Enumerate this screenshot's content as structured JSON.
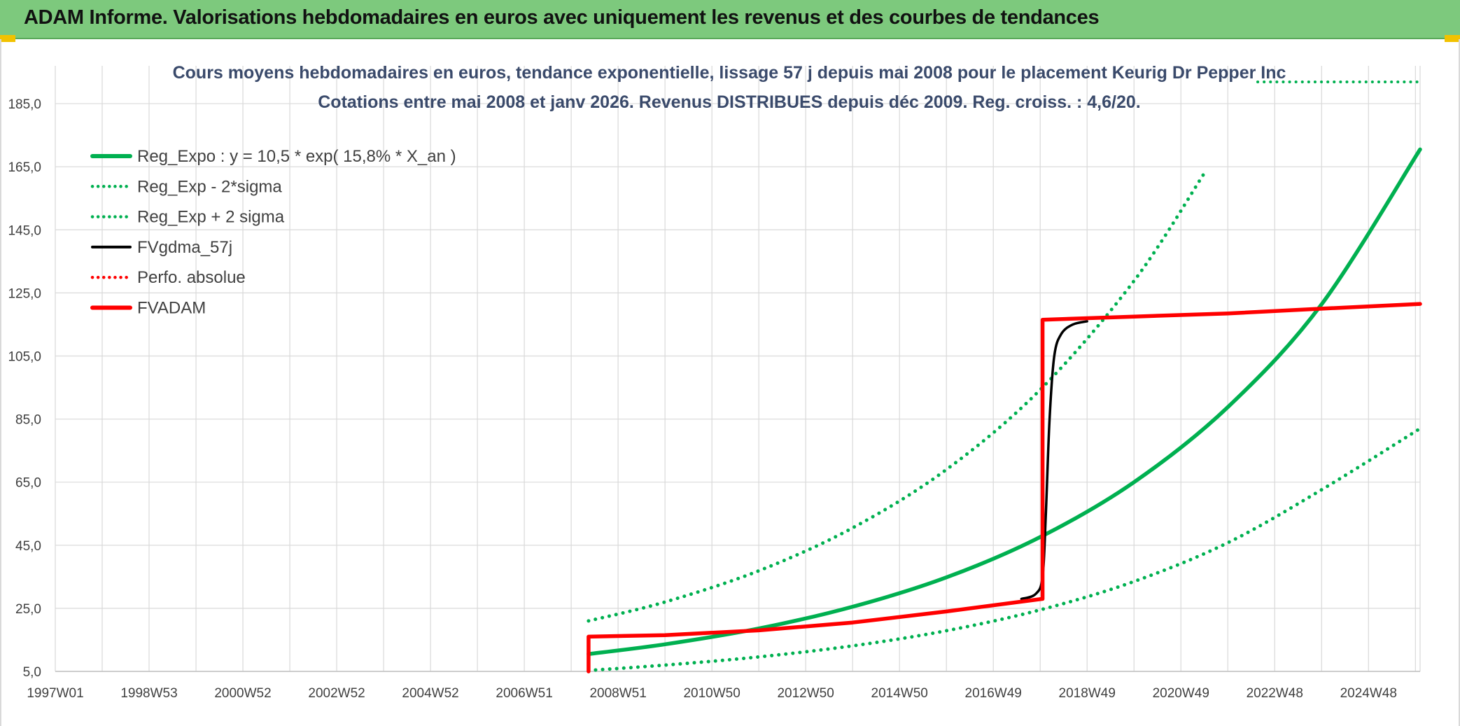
{
  "banner": {
    "title": "ADAM Informe. Valorisations hebdomadaires en euros avec uniquement les revenus et des courbes de tendances"
  },
  "colors": {
    "banner_bg": "#7dc97d",
    "reg_expo": "#00b050",
    "fvgdma": "#000000",
    "fvadam": "#ff0000",
    "perfo": "#ff0000"
  },
  "chart_data": {
    "type": "line",
    "title": [
      "Cours moyens hebdomadaires en euros, tendance exponentielle, lissage 57 j depuis mai 2008 pour le placement Keurig Dr Pepper Inc",
      "Cotations entre mai 2008 et janv 2026. Revenus DISTRIBUES depuis déc 2009. Reg. croiss. : 4,6/20."
    ],
    "x_tick_labels": [
      "1997W01",
      "1998W53",
      "2000W52",
      "2002W52",
      "2004W52",
      "2006W51",
      "2008W51",
      "2010W50",
      "2012W50",
      "2014W50",
      "2016W49",
      "2018W49",
      "2020W49",
      "2022W48",
      "2024W48"
    ],
    "x_range_years": [
      1997.0,
      2026.1
    ],
    "y_tick_labels": [
      "5,0",
      "25,0",
      "45,0",
      "65,0",
      "85,0",
      "105,0",
      "125,0",
      "145,0",
      "165,0",
      "185,0"
    ],
    "ylim": [
      5,
      197
    ],
    "grid": true,
    "legend_position": "top-left",
    "series": [
      {
        "name": "Reg_Expo : y = 10,5 * exp( 15,8% *  X_an )",
        "style": "solid-thick",
        "color": "#00b050",
        "x": [
          2008.37,
          2010,
          2012,
          2014,
          2016,
          2018,
          2020,
          2022,
          2024,
          2026.1
        ],
        "y": [
          10.5,
          13.6,
          18.6,
          25.5,
          34.8,
          47.6,
          65.0,
          88.8,
          121.4,
          170.5
        ]
      },
      {
        "name": "Reg_Exp - 2*sigma",
        "style": "dotted",
        "color": "#00b050",
        "x": [
          2008.37,
          2010,
          2012,
          2014,
          2016,
          2018,
          2020,
          2022,
          2024,
          2026.1
        ],
        "y": [
          5.3,
          7.0,
          9.6,
          13.1,
          17.9,
          24.5,
          33.5,
          45.8,
          62.6,
          82.0
        ]
      },
      {
        "name": "Reg_Exp + 2 sigma",
        "style": "dotted",
        "color": "#00b050",
        "x": [
          2008.37,
          2010,
          2012,
          2014,
          2016,
          2018,
          2020,
          2021.5
        ],
        "y": [
          21.0,
          27.0,
          36.9,
          50.5,
          69.0,
          94.3,
          128.8,
          163.0
        ]
      },
      {
        "name": "FVgdma_57j",
        "style": "solid",
        "color": "#000000",
        "x": [
          2017.6,
          2017.9,
          2018.05,
          2018.12,
          2018.2,
          2018.3,
          2018.45,
          2018.7,
          2019.0
        ],
        "y": [
          28.0,
          29.5,
          35.0,
          55.0,
          85.0,
          105.0,
          112.0,
          115.0,
          116.0
        ]
      },
      {
        "name": "Perfo. absolue",
        "style": "dotted",
        "color": "#ff0000",
        "x": [],
        "y": []
      },
      {
        "name": "FVADAM",
        "style": "solid-thick",
        "color": "#ff0000",
        "x": [
          2008.37,
          2008.37,
          2010,
          2012,
          2014,
          2016,
          2018.05,
          2018.05,
          2020,
          2022,
          2024,
          2026.1
        ],
        "y": [
          5.0,
          16.0,
          16.5,
          18.0,
          20.5,
          24.0,
          28.0,
          116.5,
          117.5,
          118.5,
          120.0,
          121.5
        ]
      }
    ]
  }
}
